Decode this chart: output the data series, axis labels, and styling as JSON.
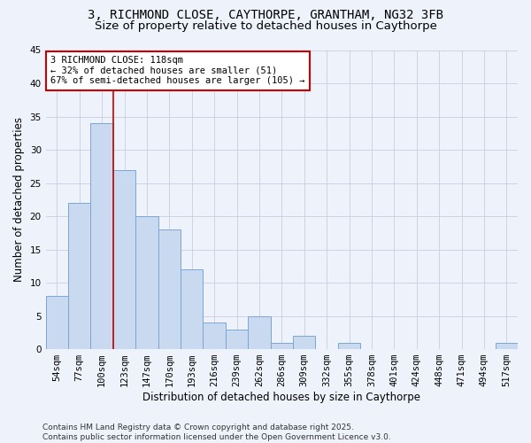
{
  "title_line1": "3, RICHMOND CLOSE, CAYTHORPE, GRANTHAM, NG32 3FB",
  "title_line2": "Size of property relative to detached houses in Caythorpe",
  "xlabel": "Distribution of detached houses by size in Caythorpe",
  "ylabel": "Number of detached properties",
  "categories": [
    "54sqm",
    "77sqm",
    "100sqm",
    "123sqm",
    "147sqm",
    "170sqm",
    "193sqm",
    "216sqm",
    "239sqm",
    "262sqm",
    "286sqm",
    "309sqm",
    "332sqm",
    "355sqm",
    "378sqm",
    "401sqm",
    "424sqm",
    "448sqm",
    "471sqm",
    "494sqm",
    "517sqm"
  ],
  "values": [
    8,
    22,
    34,
    27,
    20,
    18,
    12,
    4,
    3,
    5,
    1,
    2,
    0,
    1,
    0,
    0,
    0,
    0,
    0,
    0,
    1
  ],
  "bar_color": "#c8d9f0",
  "bar_edge_color": "#7ba7d4",
  "vline_x": 2.5,
  "vline_color": "#cc0000",
  "annotation_line1": "3 RICHMOND CLOSE: 118sqm",
  "annotation_line2": "← 32% of detached houses are smaller (51)",
  "annotation_line3": "67% of semi-detached houses are larger (105) →",
  "annotation_box_color": "#ffffff",
  "annotation_box_edge": "#cc0000",
  "ylim": [
    0,
    45
  ],
  "yticks": [
    0,
    5,
    10,
    15,
    20,
    25,
    30,
    35,
    40,
    45
  ],
  "bg_color": "#eef2fb",
  "grid_color": "#c8cfe0",
  "footer": "Contains HM Land Registry data © Crown copyright and database right 2025.\nContains public sector information licensed under the Open Government Licence v3.0.",
  "title_fontsize": 10,
  "subtitle_fontsize": 9.5,
  "axis_label_fontsize": 8.5,
  "tick_fontsize": 7.5,
  "annotation_fontsize": 7.5,
  "footer_fontsize": 6.5
}
